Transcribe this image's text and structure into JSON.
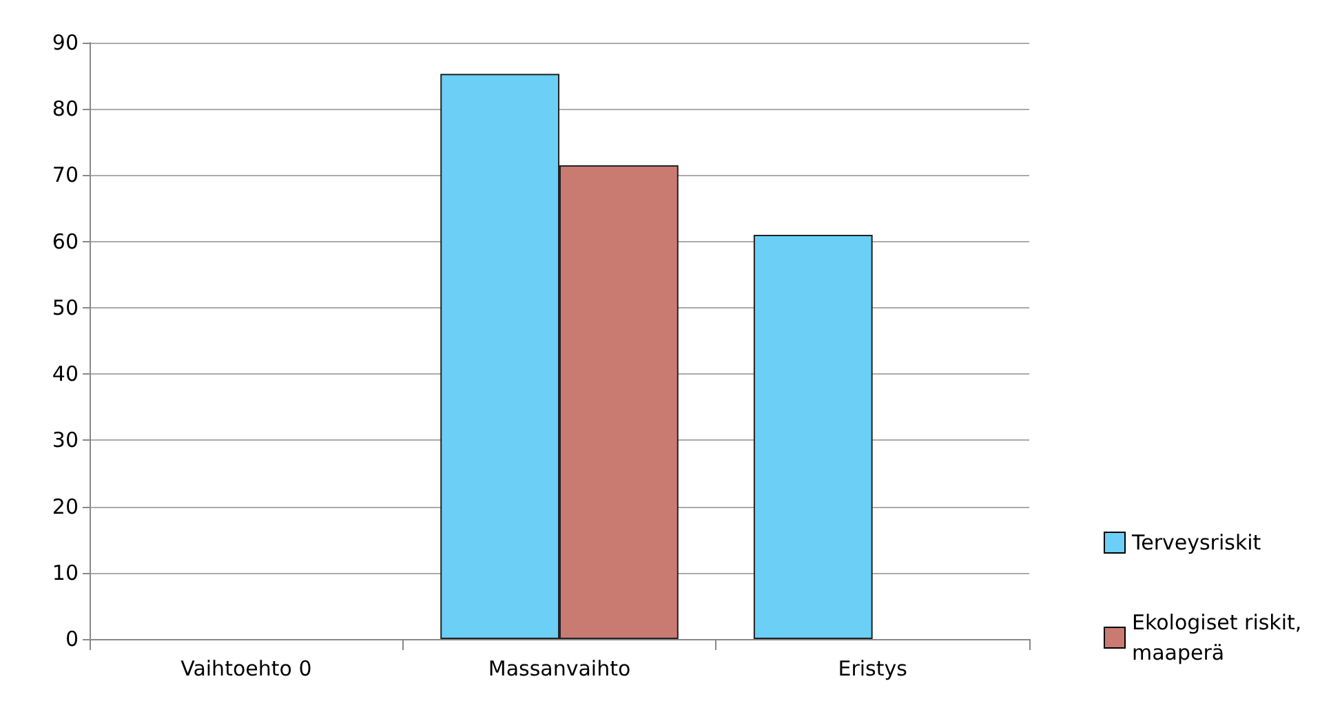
{
  "chart_data": {
    "type": "bar",
    "categories": [
      "Vaihtoehto 0",
      "Massanvaihto",
      "Eristys"
    ],
    "series": [
      {
        "name": "Terveysriskit",
        "color": "#6bcff6",
        "values": [
          null,
          85.3,
          61
        ]
      },
      {
        "name": "Ekologiset riskit, maaperä",
        "color": "#c97b72",
        "values": [
          null,
          71.5,
          null
        ]
      }
    ],
    "ylim": [
      0,
      90
    ],
    "yticks": [
      0,
      10,
      20,
      30,
      40,
      50,
      60,
      70,
      80,
      90
    ],
    "grid": "y",
    "legend": "right"
  }
}
